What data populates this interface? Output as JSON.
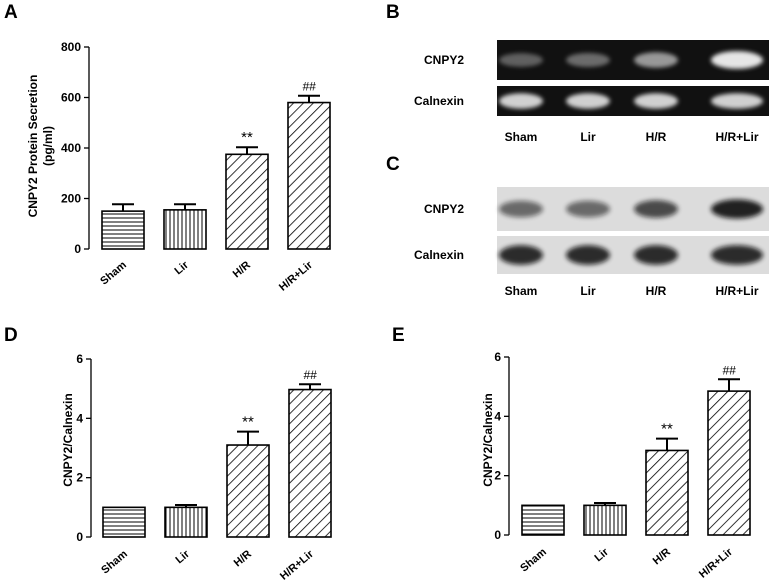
{
  "panels": {
    "A": {
      "label": "A",
      "chart_data": {
        "type": "bar",
        "categories": [
          "Sham",
          "Lir",
          "H/R",
          "H/R+Lir"
        ],
        "values": [
          150,
          155,
          375,
          580
        ],
        "errors": [
          27,
          22,
          28,
          27
        ],
        "significance": [
          "",
          "",
          "**",
          "##"
        ],
        "ylabel_lines": [
          "CNPY2 Protein Secretion",
          "(pg/ml)"
        ],
        "ylim": [
          0,
          800
        ],
        "yticks": [
          "0",
          "200",
          "400",
          "600",
          "800"
        ],
        "hatch": [
          "horizontal",
          "vertical",
          "diagonal",
          "diagonal"
        ]
      }
    },
    "B": {
      "label": "B",
      "rows": [
        "CNPY2",
        "Calnexin"
      ],
      "lanes": [
        "Sham",
        "Lir",
        "H/R",
        "H/R+Lir"
      ],
      "cnpy2_intensity": [
        0.35,
        0.4,
        0.6,
        0.95
      ],
      "calnexin_intensity": [
        0.85,
        0.85,
        0.85,
        0.85
      ]
    },
    "C": {
      "label": "C",
      "rows": [
        "CNPY2",
        "Calnexin"
      ],
      "lanes": [
        "Sham",
        "Lir",
        "H/R",
        "H/R+Lir"
      ],
      "cnpy2_intensity": [
        0.55,
        0.55,
        0.7,
        0.9
      ],
      "calnexin_intensity": [
        0.85,
        0.85,
        0.85,
        0.85
      ]
    },
    "D": {
      "label": "D",
      "chart_data": {
        "type": "bar",
        "categories": [
          "Sham",
          "Lir",
          "H/R",
          "H/R+Lir"
        ],
        "values": [
          1.0,
          1.0,
          3.1,
          4.97
        ],
        "errors": [
          0,
          0.08,
          0.45,
          0.18
        ],
        "significance": [
          "",
          "",
          "**",
          "##"
        ],
        "ylabel": "CNPY2/Calnexin",
        "ylim": [
          0,
          6
        ],
        "yticks": [
          "0",
          "2",
          "4",
          "6"
        ],
        "hatch": [
          "horizontal",
          "vertical",
          "diagonal",
          "diagonal"
        ]
      }
    },
    "E": {
      "label": "E",
      "chart_data": {
        "type": "bar",
        "categories": [
          "Sham",
          "Lir",
          "H/R",
          "H/R+Lir"
        ],
        "values": [
          1.0,
          1.0,
          2.85,
          4.85
        ],
        "errors": [
          0,
          0.08,
          0.4,
          0.4
        ],
        "significance": [
          "",
          "",
          "**",
          "##"
        ],
        "ylabel": "CNPY2/Calnexin",
        "ylim": [
          0,
          6
        ],
        "yticks": [
          "0",
          "2",
          "4",
          "6"
        ],
        "hatch": [
          "horizontal",
          "vertical",
          "diagonal",
          "diagonal"
        ]
      }
    }
  }
}
